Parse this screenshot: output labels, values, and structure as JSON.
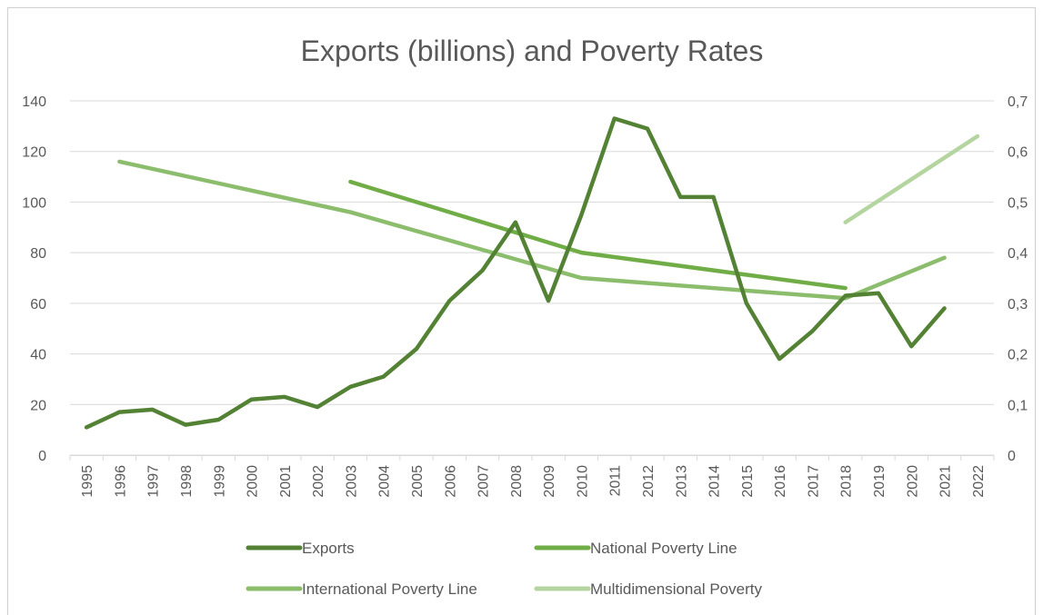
{
  "chart_data": {
    "type": "line",
    "title": "Exports (billions) and Poverty Rates",
    "x": [
      "1995",
      "1996",
      "1997",
      "1998",
      "1999",
      "2000",
      "2001",
      "2002",
      "2003",
      "2004",
      "2005",
      "2006",
      "2007",
      "2008",
      "2009",
      "2010",
      "2011",
      "2012",
      "2013",
      "2014",
      "2015",
      "2016",
      "2017",
      "2018",
      "2019",
      "2020",
      "2021",
      "2022"
    ],
    "y_left": {
      "min": 0,
      "max": 140,
      "ticks": [
        "0",
        "20",
        "40",
        "60",
        "80",
        "100",
        "120",
        "140"
      ]
    },
    "y_right": {
      "min": 0,
      "max": 0.7,
      "ticks": [
        "0",
        "0,1",
        "0,2",
        "0,3",
        "0,4",
        "0,5",
        "0,6",
        "0,7"
      ]
    },
    "grid": true,
    "legend_position": "bottom",
    "series": [
      {
        "name": "Exports",
        "axis": "left",
        "color": "#548235",
        "values": [
          11,
          17,
          18,
          12,
          14,
          22,
          23,
          19,
          27,
          31,
          42,
          61,
          73,
          92,
          61,
          95,
          133,
          129,
          102,
          102,
          60,
          38,
          49,
          63,
          64,
          43,
          58,
          null
        ]
      },
      {
        "name": "National Poverty Line",
        "axis": "right",
        "color": "#70AD47",
        "values": [
          null,
          null,
          null,
          null,
          null,
          null,
          null,
          null,
          0.54,
          null,
          null,
          null,
          null,
          null,
          null,
          0.4,
          null,
          null,
          null,
          null,
          null,
          null,
          null,
          0.33,
          null,
          null,
          null,
          null
        ]
      },
      {
        "name": "International Poverty Line",
        "axis": "right",
        "color": "#8CBD6D",
        "values": [
          null,
          0.58,
          null,
          null,
          null,
          null,
          null,
          null,
          0.48,
          null,
          null,
          null,
          null,
          null,
          null,
          0.35,
          null,
          null,
          null,
          null,
          null,
          null,
          null,
          0.31,
          null,
          null,
          0.39,
          null
        ]
      },
      {
        "name": "Multidimensional Poverty",
        "axis": "right",
        "color": "#B5D5A0",
        "values": [
          null,
          null,
          null,
          null,
          null,
          null,
          null,
          null,
          null,
          null,
          null,
          null,
          null,
          null,
          null,
          null,
          null,
          null,
          null,
          null,
          null,
          null,
          null,
          0.46,
          null,
          null,
          null,
          0.63
        ]
      }
    ]
  }
}
